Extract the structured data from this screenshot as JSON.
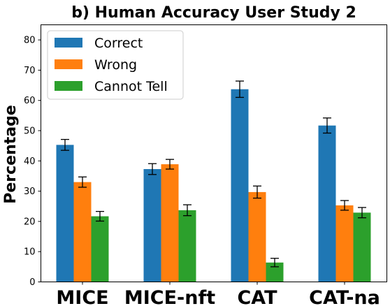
{
  "chart_data": {
    "type": "bar",
    "title": "b) Human Accuracy User Study 2",
    "xlabel": "",
    "ylabel": "Percentage",
    "ylim": [
      0,
      85
    ],
    "yticks": [
      0,
      10,
      20,
      30,
      40,
      50,
      60,
      70,
      80
    ],
    "categories": [
      "MICE",
      "MICE-nft",
      "CAT",
      "CAT-na"
    ],
    "series": [
      {
        "name": "Correct",
        "color": "#1f77b4",
        "values": [
          45.3,
          37.3,
          63.7,
          51.7
        ],
        "errors": [
          1.8,
          1.8,
          2.7,
          2.5
        ]
      },
      {
        "name": "Wrong",
        "color": "#ff7f0e",
        "values": [
          33.0,
          38.9,
          29.7,
          25.3
        ],
        "errors": [
          1.7,
          1.6,
          2.0,
          1.6
        ]
      },
      {
        "name": "Cannot Tell",
        "color": "#2ca02c",
        "values": [
          21.7,
          23.7,
          6.4,
          22.9
        ],
        "errors": [
          1.6,
          1.8,
          1.4,
          1.7
        ]
      }
    ],
    "legend_position": "top-left",
    "grid": false
  }
}
